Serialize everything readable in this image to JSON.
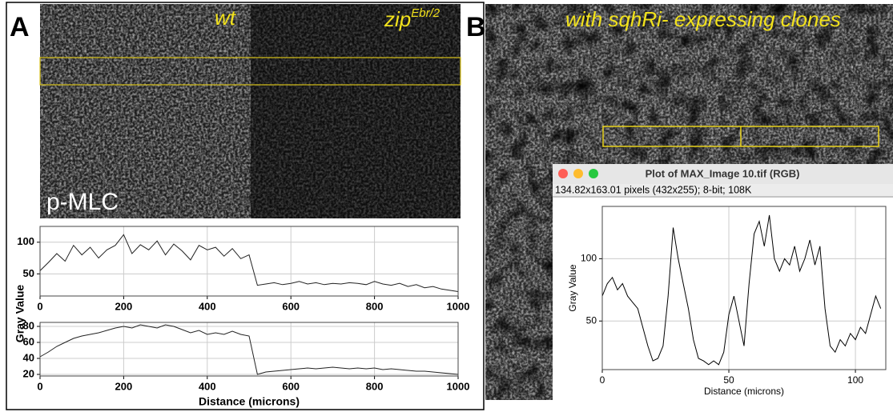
{
  "panels": {
    "A": {
      "letter": "A",
      "label_left": "wt",
      "label_right": "zip",
      "label_right_sup": "Ebr/2",
      "stain": "p-MLC",
      "y_label": "Gray Value",
      "x_label": "Distance (microns)"
    },
    "B": {
      "letter": "B",
      "label": "with sqhRi- expressing clones"
    }
  },
  "chart_data": [
    {
      "type": "line",
      "color": "#222222",
      "grid": true,
      "x": [
        0,
        20,
        40,
        60,
        80,
        100,
        120,
        140,
        160,
        180,
        200,
        220,
        240,
        260,
        280,
        300,
        320,
        340,
        360,
        380,
        400,
        420,
        440,
        460,
        480,
        500,
        520,
        540,
        560,
        580,
        600,
        620,
        640,
        660,
        680,
        700,
        720,
        740,
        760,
        780,
        800,
        820,
        840,
        860,
        880,
        900,
        920,
        940,
        960,
        980,
        1000
      ],
      "values": [
        55,
        68,
        82,
        70,
        95,
        80,
        92,
        75,
        88,
        95,
        112,
        82,
        96,
        88,
        102,
        80,
        97,
        86,
        72,
        95,
        88,
        92,
        78,
        90,
        74,
        80,
        32,
        34,
        36,
        33,
        35,
        38,
        34,
        36,
        33,
        35,
        34,
        36,
        35,
        33,
        38,
        34,
        32,
        35,
        30,
        33,
        28,
        30,
        26,
        24,
        22
      ],
      "xlim": [
        0,
        1000
      ],
      "ylim": [
        15,
        125
      ],
      "xticks": [
        0,
        200,
        400,
        600,
        800,
        1000
      ],
      "yticks": [
        50,
        100
      ]
    },
    {
      "type": "line",
      "color": "#222222",
      "grid": true,
      "x": [
        0,
        20,
        40,
        60,
        80,
        100,
        120,
        140,
        160,
        180,
        200,
        220,
        240,
        260,
        280,
        300,
        320,
        340,
        360,
        380,
        400,
        420,
        440,
        460,
        480,
        500,
        520,
        540,
        560,
        580,
        600,
        620,
        640,
        660,
        680,
        700,
        720,
        740,
        760,
        780,
        800,
        820,
        840,
        860,
        880,
        900,
        920,
        940,
        960,
        980,
        1000
      ],
      "values": [
        42,
        48,
        55,
        60,
        65,
        68,
        70,
        72,
        75,
        78,
        80,
        78,
        82,
        80,
        78,
        82,
        80,
        76,
        72,
        75,
        70,
        72,
        70,
        74,
        70,
        68,
        20,
        23,
        24,
        25,
        26,
        27,
        28,
        27,
        28,
        29,
        28,
        27,
        28,
        27,
        28,
        26,
        27,
        26,
        25,
        24,
        24,
        23,
        22,
        21,
        20
      ],
      "xlim": [
        0,
        1000
      ],
      "ylim": [
        18,
        85
      ],
      "xticks": [
        0,
        200,
        400,
        600,
        800,
        1000
      ],
      "yticks": [
        20,
        40,
        60,
        80
      ]
    },
    {
      "type": "line",
      "color": "#000000",
      "grid": true,
      "title": "Plot of MAX_Image 10.tif (RGB)",
      "subtitle": "134.82x163.01 pixels (432x255); 8-bit; 108K",
      "y_label": "Gray Value",
      "x_label": "Distance (microns)",
      "x": [
        0,
        2,
        4,
        6,
        8,
        10,
        12,
        14,
        16,
        18,
        20,
        22,
        24,
        26,
        28,
        30,
        32,
        34,
        36,
        38,
        40,
        42,
        44,
        46,
        48,
        50,
        52,
        54,
        56,
        58,
        60,
        62,
        64,
        66,
        68,
        70,
        72,
        74,
        76,
        78,
        80,
        82,
        84,
        86,
        88,
        90,
        92,
        94,
        96,
        98,
        100,
        102,
        104,
        106,
        108,
        110
      ],
      "values": [
        70,
        80,
        85,
        75,
        80,
        70,
        65,
        60,
        45,
        30,
        18,
        20,
        30,
        70,
        125,
        100,
        80,
        60,
        35,
        20,
        18,
        15,
        18,
        15,
        25,
        55,
        70,
        50,
        30,
        80,
        120,
        130,
        110,
        135,
        100,
        90,
        100,
        95,
        110,
        90,
        100,
        115,
        95,
        110,
        60,
        30,
        25,
        35,
        30,
        40,
        35,
        45,
        40,
        55,
        70,
        60
      ],
      "xlim": [
        0,
        112
      ],
      "ylim": [
        11,
        142
      ],
      "xticks": [
        0,
        50,
        100
      ],
      "yticks": [
        50,
        100
      ]
    }
  ]
}
